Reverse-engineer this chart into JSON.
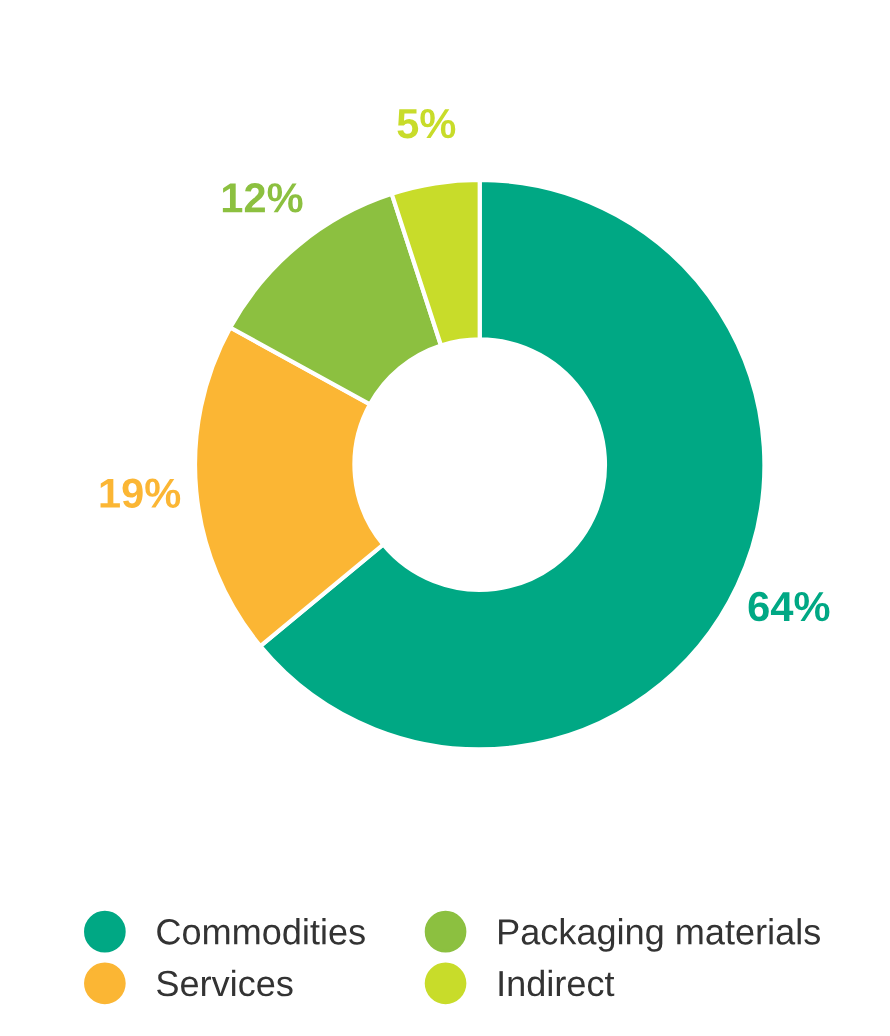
{
  "chart_data": {
    "type": "donut",
    "categories": [
      "Commodities",
      "Services",
      "Packaging materials",
      "Indirect"
    ],
    "values": [
      64,
      19,
      12,
      5
    ],
    "value_labels": [
      "64%",
      "19%",
      "12%",
      "5%"
    ],
    "colors": [
      "#00a884",
      "#fbb634",
      "#8cc040",
      "#c8dc2a"
    ],
    "legend": "bottom"
  }
}
